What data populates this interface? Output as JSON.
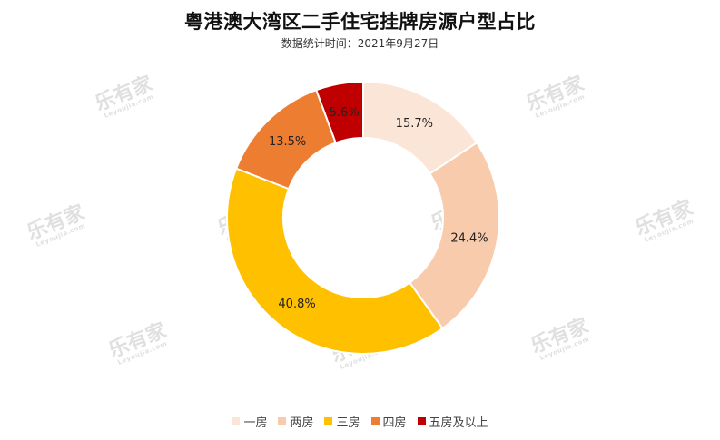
{
  "title": "粤港澳大湾区二手住宅挂牌房源户型占比",
  "subtitle": "数据统计时间：2021年9月27日",
  "watermark": {
    "text": "乐有家",
    "sub": "Leyoujia.com",
    "color": "#d6d6d6"
  },
  "chart_data": {
    "type": "pie",
    "variant": "donut",
    "title": "粤港澳大湾区二手住宅挂牌房源户型占比",
    "subtitle": "数据统计时间：2021年9月27日",
    "legend_position": "bottom",
    "categories": [
      "一房",
      "两房",
      "三房",
      "四房",
      "五房及以上"
    ],
    "values": [
      15.7,
      24.4,
      40.8,
      13.5,
      5.6
    ],
    "labels": [
      "15.7%",
      "24.4%",
      "40.8%",
      "13.5%",
      "5.6%"
    ],
    "colors": [
      "#fbe5d6",
      "#f8cbad",
      "#ffc000",
      "#ed7d31",
      "#c00000"
    ]
  }
}
